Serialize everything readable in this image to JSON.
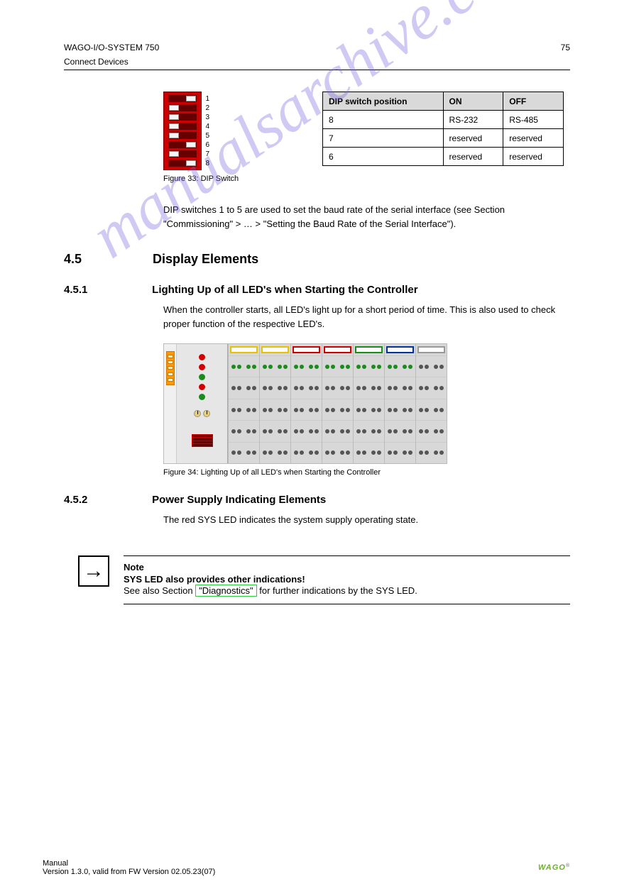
{
  "header": {
    "doc_title": "WAGO-I/O-SYSTEM 750",
    "page_number": "75",
    "subtitle": "Connect Devices"
  },
  "dip": {
    "caption": "Figure 33: DIP Switch",
    "labels": [
      "1",
      "2",
      "3",
      "4",
      "5",
      "6",
      "7",
      "8"
    ],
    "positions": [
      "right",
      "left",
      "left",
      "left",
      "left",
      "right",
      "left",
      "right"
    ],
    "switch_bg": "#cc0000",
    "slot_bg": "#660000",
    "knob_bg": "#f5f5f5"
  },
  "param_table": {
    "headers": [
      "DIP switch position",
      "ON",
      "OFF"
    ],
    "rows": [
      [
        "8",
        "RS-232",
        "RS-485"
      ],
      [
        "7",
        "reserved",
        "reserved"
      ],
      [
        "6",
        "reserved",
        "reserved"
      ]
    ]
  },
  "sections": {
    "s442_body": "DIP switches 1 to 5 are used to set the baud rate of the serial interface (see Section \"Commissioning\" > … > \"Setting the Baud Rate of the Serial Interface\").",
    "s45_num": "4.5",
    "s45_title": "Display Elements",
    "s451_num": "4.5.1",
    "s451_title": "Lighting Up of all LED's when Starting the Controller",
    "s451_body": "When the controller starts, all LED's light up for a short period of time. This is also used to check proper function of the respective LED's."
  },
  "node_fig": {
    "caption": "Figure 34: Lighting Up of all LED's when Starting the Controller",
    "background": "#d8d8d8",
    "coupler_bg": "#e6e6e6",
    "plug_color": "#ff9900",
    "led_colors": [
      "#d40000",
      "#d40000",
      "#1a8c1a",
      "#d40000",
      "#1a8c1a"
    ],
    "module_bar_colors": [
      "yellow",
      "yellow",
      "red",
      "red",
      "green",
      "blue",
      "gray"
    ],
    "terminal_rows": 4,
    "status_row_color": "#1a8c1a",
    "hole_color": "#555555"
  },
  "s452": {
    "num": "4.5.2",
    "title": "Power Supply Indicating Elements",
    "body": "The red SYS LED indicates the system supply operating state."
  },
  "note": {
    "icon": "→",
    "title": "Note",
    "heading": "SYS LED also provides other indications!",
    "body_before": "See also Section ",
    "link": "\"Diagnostics\"",
    "body_after": " for further indications by the SYS LED."
  },
  "footer": {
    "left": "Manual",
    "center": "Version 1.3.0, valid from FW Version 02.05.23(07)",
    "logo": "WAGO"
  },
  "watermark": "manualsarchive.com",
  "colors": {
    "table_header_bg": "#d9d9d9",
    "hr": "#000000",
    "note_border": "#000000",
    "link_border": "#2ecc40"
  }
}
